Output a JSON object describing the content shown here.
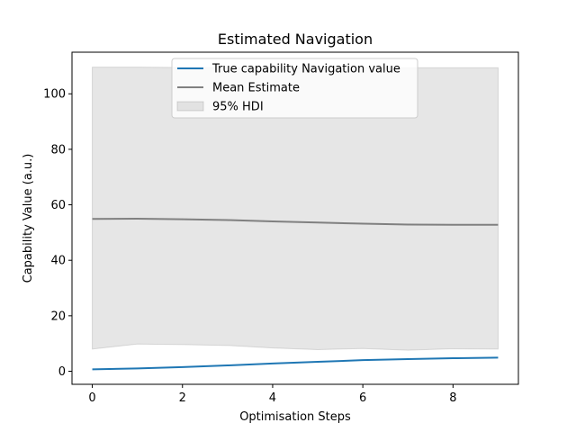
{
  "chart_data": {
    "type": "line",
    "title": "Estimated Navigation",
    "xlabel": "Optimisation Steps",
    "ylabel": "Capability Value (a.u.)",
    "xlim": [
      -0.45,
      9.45
    ],
    "ylim": [
      -4.7,
      115
    ],
    "xticks": [
      0,
      2,
      4,
      6,
      8
    ],
    "yticks": [
      0,
      20,
      40,
      60,
      80,
      100
    ],
    "x": [
      0,
      1,
      2,
      3,
      4,
      5,
      6,
      7,
      8,
      9
    ],
    "series": [
      {
        "name": "True capability Navigation value",
        "kind": "line",
        "color": "#1f77b4",
        "values": [
          0.7,
          1.0,
          1.5,
          2.1,
          2.8,
          3.4,
          4.0,
          4.4,
          4.7,
          4.9
        ]
      },
      {
        "name": "Mean Estimate",
        "kind": "line",
        "color": "#808080",
        "values": [
          54.9,
          55.0,
          54.8,
          54.5,
          54.0,
          53.6,
          53.2,
          52.9,
          52.8,
          52.8
        ]
      },
      {
        "name": "95% HDI",
        "kind": "band",
        "color": "#808080",
        "lower": [
          8.0,
          9.8,
          9.6,
          9.3,
          8.4,
          7.8,
          8.2,
          7.6,
          8.1,
          8.0
        ],
        "upper": [
          109.6,
          109.6,
          109.5,
          109.5,
          109.5,
          109.5,
          109.5,
          109.4,
          109.4,
          109.4
        ]
      }
    ],
    "legend_position": "upper center",
    "grid": false
  }
}
